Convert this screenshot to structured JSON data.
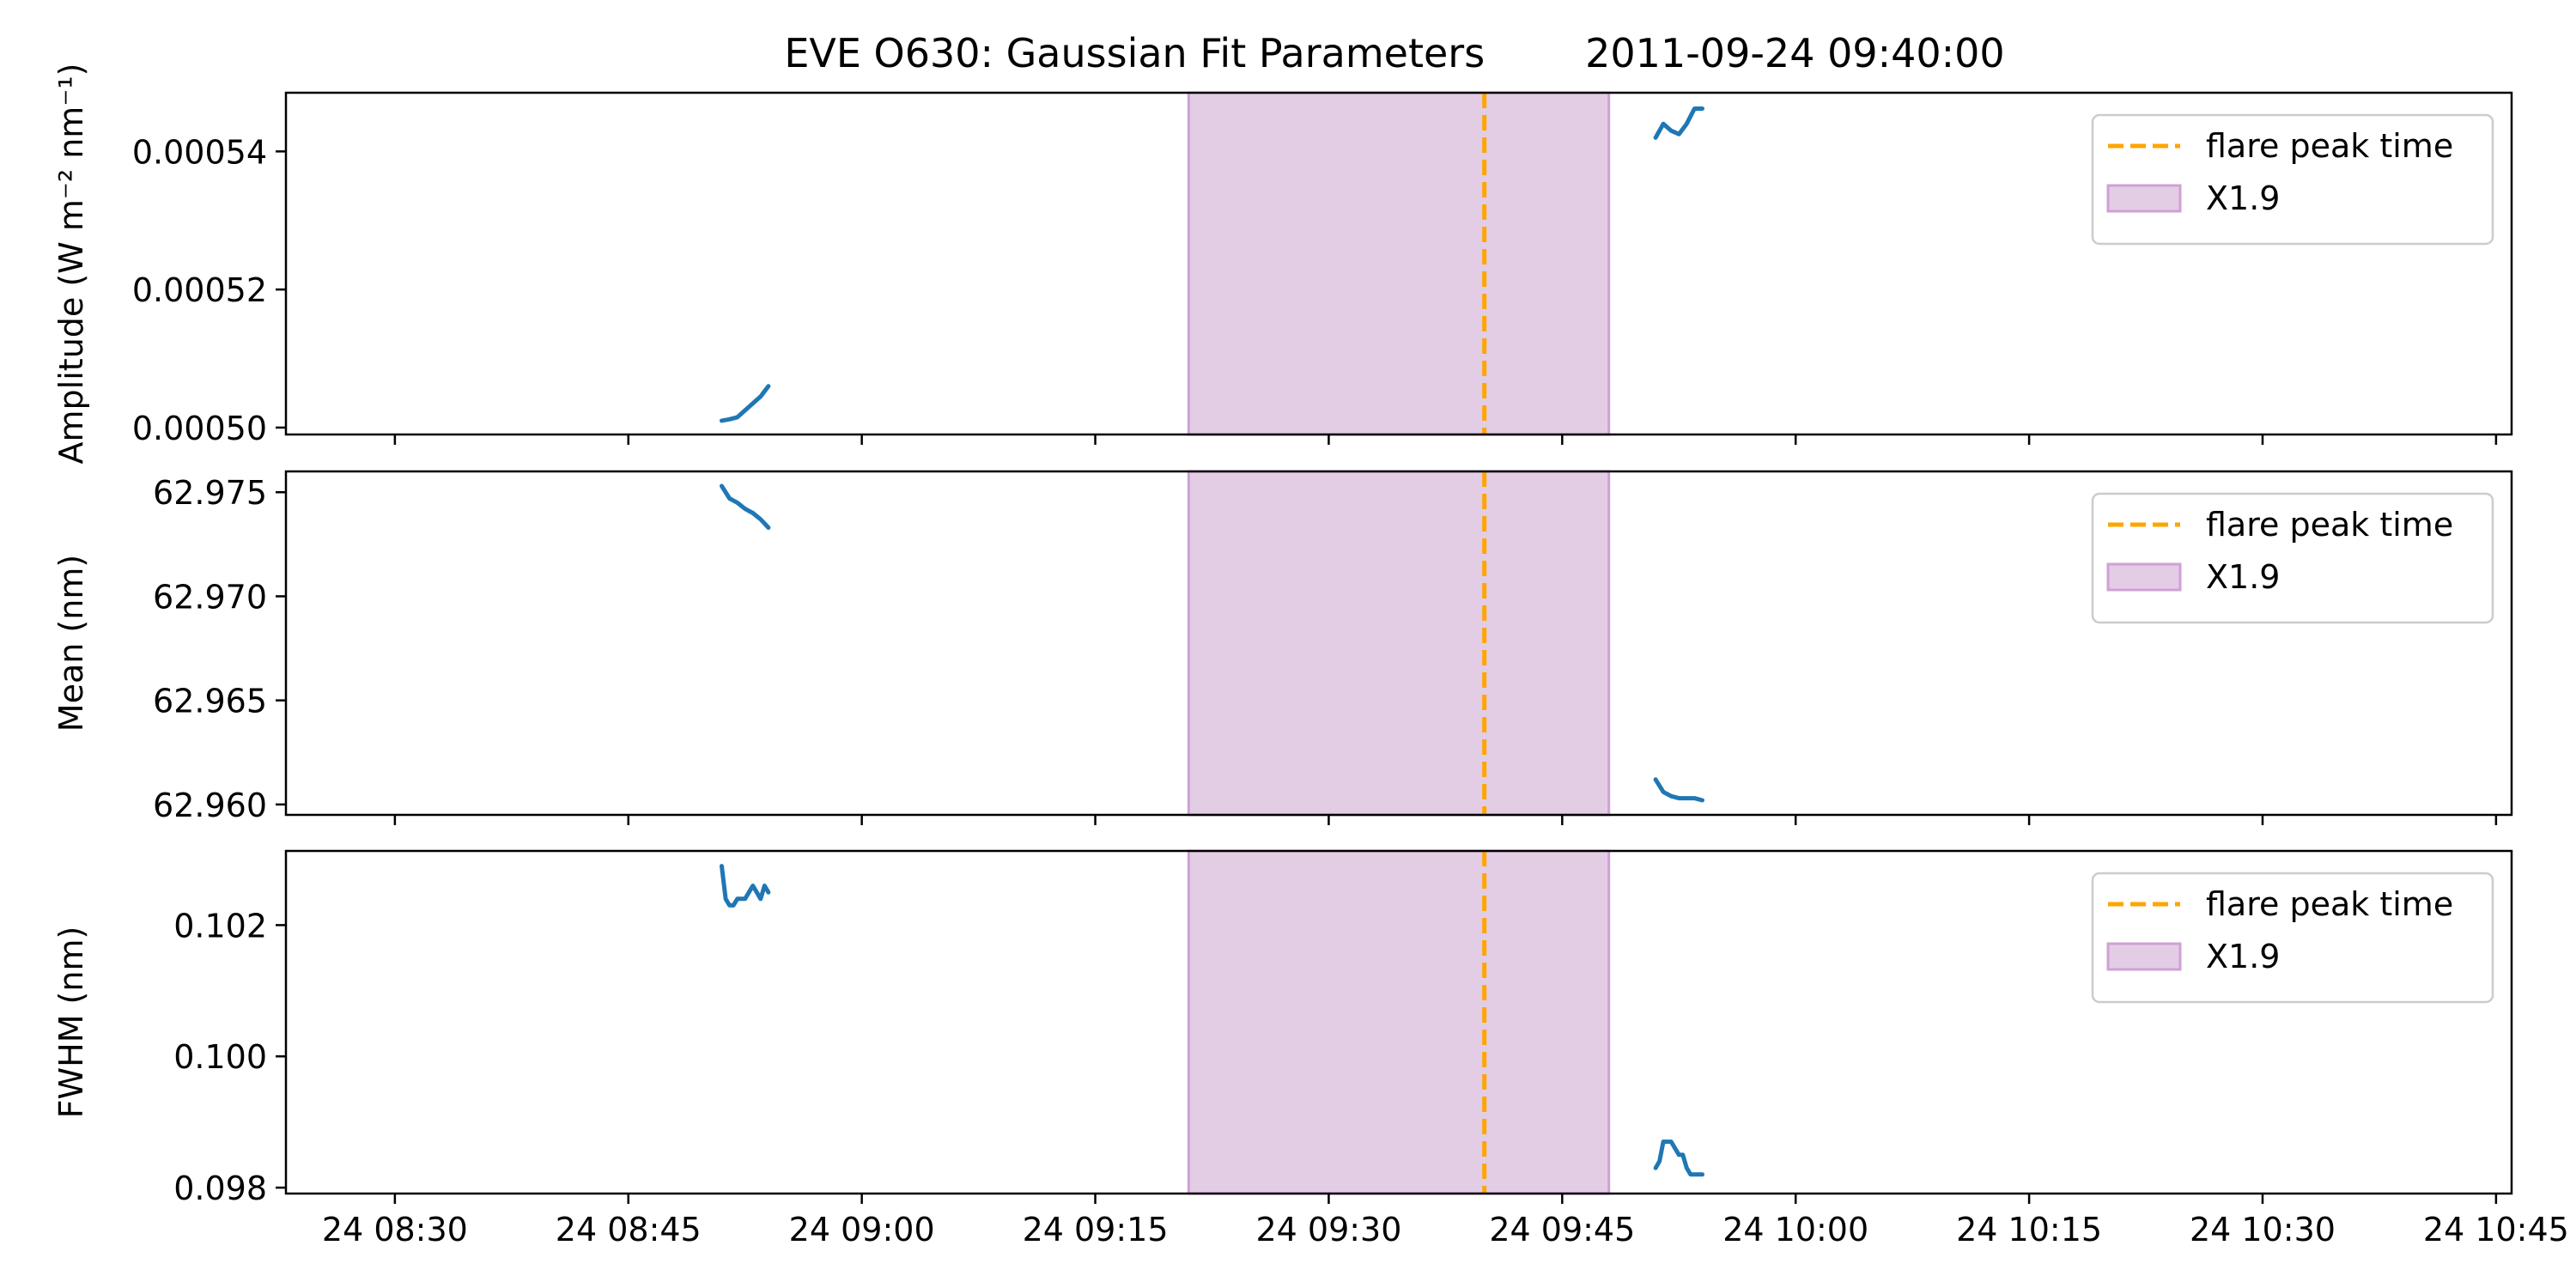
{
  "title": "EVE O630: Gaussian Fit Parameters        2011-09-24 09:40:00",
  "colors": {
    "line": "#1f77b4",
    "peak": "#ffa500",
    "span_fill": "#e3cde5",
    "span_edge": "#cfa0d5",
    "axes": "#000000",
    "legend_edge": "#cccccc"
  },
  "legend": {
    "peak_label": "flare peak time",
    "span_label": "X1.9"
  },
  "chart_data": [
    {
      "type": "line",
      "ylabel": "Amplitude (W m⁻² nm⁻¹)",
      "ylim": [
        0.000499,
        0.0005485
      ],
      "yticks": [
        0.0005,
        0.00052,
        0.00054
      ],
      "ytick_labels": [
        "0.00050",
        "0.00052",
        "0.00054"
      ],
      "xlim": [
        "2011-09-24 08:23",
        "2011-09-24 10:46"
      ],
      "grid": false,
      "legend_position": "top-right",
      "flare_peak_time": "2011-09-24 09:40",
      "flare_span": [
        "2011-09-24 09:21",
        "2011-09-24 09:48"
      ],
      "flare_class": "X1.9",
      "series": [
        {
          "segment": 1,
          "x": [
            "08:51:00",
            "08:51:30",
            "08:52:00",
            "08:52:30",
            "08:53:00",
            "08:53:30",
            "08:54:00"
          ],
          "y": [
            0.000501,
            0.0005012,
            0.0005015,
            0.0005025,
            0.0005035,
            0.0005045,
            0.000506
          ]
        },
        {
          "segment": 2,
          "x": [
            "09:51:00",
            "09:51:30",
            "09:52:00",
            "09:52:30",
            "09:53:00",
            "09:53:30",
            "09:54:00"
          ],
          "y": [
            0.000542,
            0.000544,
            0.000543,
            0.0005425,
            0.000544,
            0.0005462,
            0.0005462
          ]
        }
      ]
    },
    {
      "type": "line",
      "ylabel": "Mean (nm)",
      "ylim": [
        62.9595,
        62.976
      ],
      "yticks": [
        62.96,
        62.965,
        62.97,
        62.975
      ],
      "ytick_labels": [
        "62.960",
        "62.965",
        "62.970",
        "62.975"
      ],
      "xlim": [
        "2011-09-24 08:23",
        "2011-09-24 10:46"
      ],
      "grid": false,
      "legend_position": "top-right",
      "flare_peak_time": "2011-09-24 09:40",
      "flare_span": [
        "2011-09-24 09:21",
        "2011-09-24 09:48"
      ],
      "flare_class": "X1.9",
      "series": [
        {
          "segment": 1,
          "x": [
            "08:51:00",
            "08:51:30",
            "08:52:00",
            "08:52:30",
            "08:53:00",
            "08:53:30",
            "08:54:00"
          ],
          "y": [
            62.9753,
            62.9747,
            62.9745,
            62.9742,
            62.974,
            62.9737,
            62.9733
          ]
        },
        {
          "segment": 2,
          "x": [
            "09:51:00",
            "09:51:30",
            "09:52:00",
            "09:52:30",
            "09:53:00",
            "09:53:30",
            "09:54:00"
          ],
          "y": [
            62.9612,
            62.9606,
            62.9604,
            62.9603,
            62.9603,
            62.9603,
            62.9602
          ]
        }
      ]
    },
    {
      "type": "line",
      "ylabel": "FWHM (nm)",
      "ylim": [
        0.09791,
        0.10313
      ],
      "yticks": [
        0.098,
        0.1,
        0.102
      ],
      "ytick_labels": [
        "0.098",
        "0.100",
        "0.102"
      ],
      "xlim": [
        "2011-09-24 08:23",
        "2011-09-24 10:46"
      ],
      "grid": false,
      "legend_position": "top-right",
      "flare_peak_time": "2011-09-24 09:40",
      "flare_span": [
        "2011-09-24 09:21",
        "2011-09-24 09:48"
      ],
      "flare_class": "X1.9",
      "series": [
        {
          "segment": 1,
          "x": [
            "08:51:00",
            "08:51:15",
            "08:51:30",
            "08:51:45",
            "08:52:00",
            "08:52:30",
            "08:52:45",
            "08:53:00",
            "08:53:30",
            "08:53:45",
            "08:54:00"
          ],
          "y": [
            0.1029,
            0.1024,
            0.1023,
            0.1023,
            0.1024,
            0.1024,
            0.1025,
            0.1026,
            0.1024,
            0.1026,
            0.1025
          ]
        },
        {
          "segment": 2,
          "x": [
            "09:51:00",
            "09:51:15",
            "09:51:30",
            "09:51:45",
            "09:52:00",
            "09:52:15",
            "09:52:30",
            "09:52:45",
            "09:53:00",
            "09:53:15",
            "09:53:30",
            "09:54:00"
          ],
          "y": [
            0.0983,
            0.0984,
            0.0987,
            0.0987,
            0.0987,
            0.0986,
            0.0985,
            0.0985,
            0.0983,
            0.0982,
            0.0982,
            0.0982
          ]
        }
      ]
    }
  ],
  "xticks": [
    {
      "time": "08:30",
      "label": "24 08:30"
    },
    {
      "time": "08:45",
      "label": "24 08:45"
    },
    {
      "time": "09:00",
      "label": "24 09:00"
    },
    {
      "time": "09:15",
      "label": "24 09:15"
    },
    {
      "time": "09:30",
      "label": "24 09:30"
    },
    {
      "time": "09:45",
      "label": "24 09:45"
    },
    {
      "time": "10:00",
      "label": "24 10:00"
    },
    {
      "time": "10:15",
      "label": "24 10:15"
    },
    {
      "time": "10:30",
      "label": "24 10:30"
    },
    {
      "time": "10:45",
      "label": "24 10:45"
    }
  ]
}
